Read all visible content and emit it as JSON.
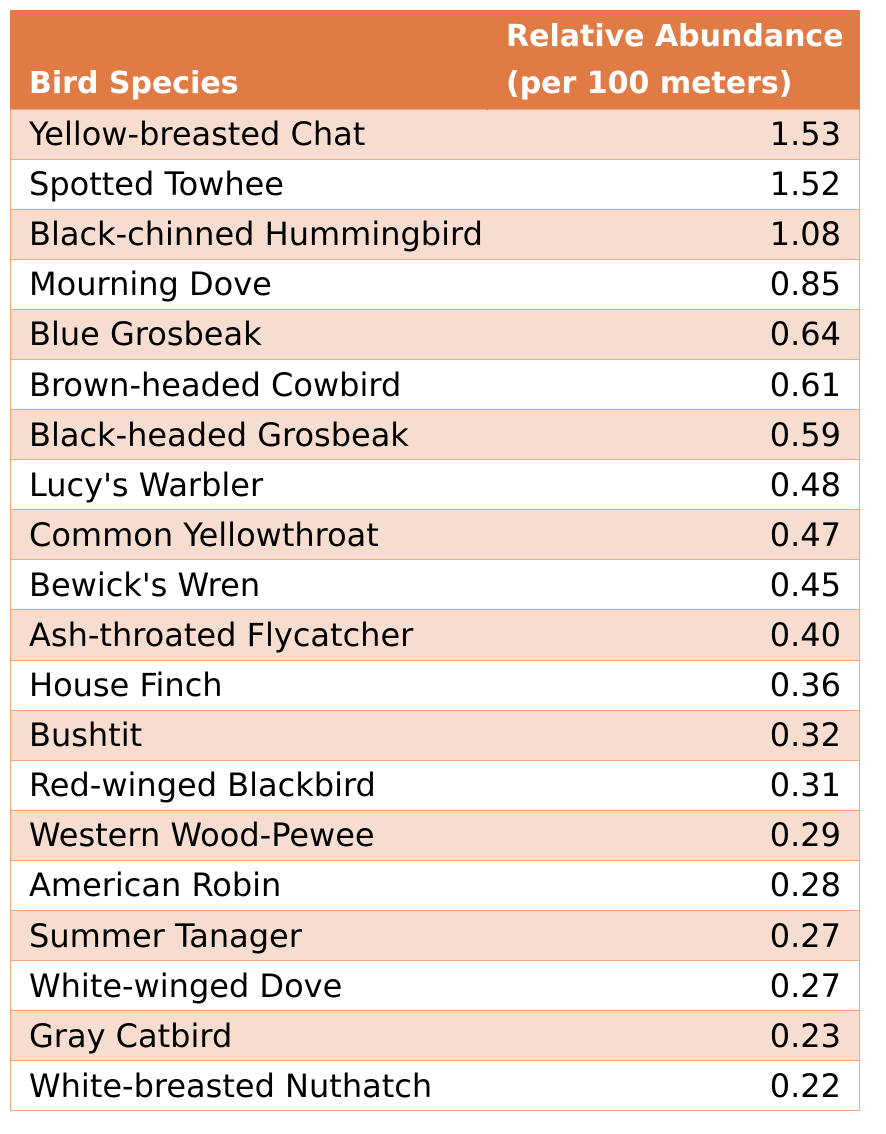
{
  "table": {
    "headers": {
      "species": "Bird Species",
      "abundance_line1": "Relative Abundance",
      "abundance_line2": "(per 100 meters)"
    },
    "colors": {
      "header_bg": "#E07B45",
      "header_text": "#FFFFFF",
      "row_shaded": "#F7DDD0",
      "row_plain": "#FFFFFF",
      "border": "#F2A77A"
    },
    "rows": [
      {
        "species": "Yellow-breasted Chat",
        "abundance": "1.53"
      },
      {
        "species": "Spotted Towhee",
        "abundance": "1.52"
      },
      {
        "species": "Black-chinned Hummingbird",
        "abundance": "1.08"
      },
      {
        "species": "Mourning Dove",
        "abundance": "0.85"
      },
      {
        "species": "Blue Grosbeak",
        "abundance": "0.64"
      },
      {
        "species": "Brown-headed Cowbird",
        "abundance": "0.61"
      },
      {
        "species": "Black-headed Grosbeak",
        "abundance": "0.59"
      },
      {
        "species": "Lucy's Warbler",
        "abundance": "0.48"
      },
      {
        "species": "Common Yellowthroat",
        "abundance": "0.47"
      },
      {
        "species": "Bewick's Wren",
        "abundance": "0.45"
      },
      {
        "species": "Ash-throated Flycatcher",
        "abundance": "0.40"
      },
      {
        "species": "House Finch",
        "abundance": "0.36"
      },
      {
        "species": "Bushtit",
        "abundance": "0.32"
      },
      {
        "species": "Red-winged Blackbird",
        "abundance": "0.31"
      },
      {
        "species": "Western Wood-Pewee",
        "abundance": "0.29"
      },
      {
        "species": "American Robin",
        "abundance": "0.28"
      },
      {
        "species": "Summer Tanager",
        "abundance": "0.27"
      },
      {
        "species": "White-winged Dove",
        "abundance": "0.27"
      },
      {
        "species": "Gray Catbird",
        "abundance": "0.23"
      },
      {
        "species": "White-breasted Nuthatch",
        "abundance": "0.22"
      }
    ]
  }
}
